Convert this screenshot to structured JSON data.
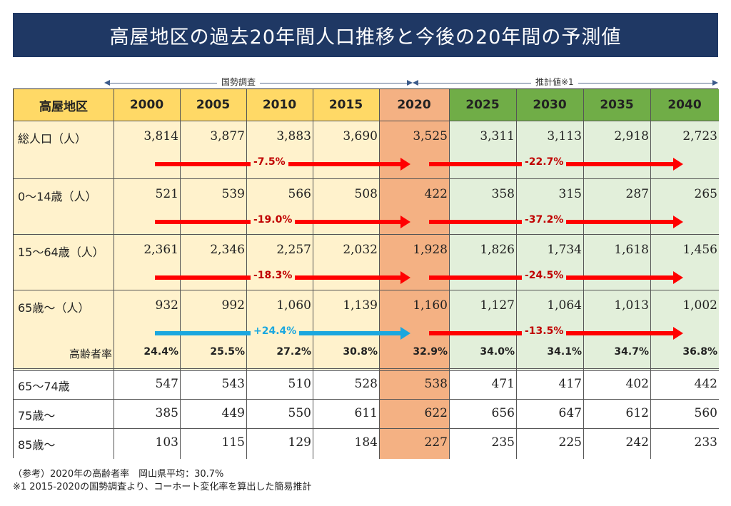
{
  "title": "高屋地区の過去20年間人口推移と今後の20年間の予測値",
  "census_label": "国勢調査",
  "estimate_label": "推計値※1",
  "header": {
    "label": "高屋地区",
    "years": [
      "2000",
      "2005",
      "2010",
      "2015",
      "2020",
      "2025",
      "2030",
      "2035",
      "2040"
    ]
  },
  "rows": [
    {
      "label": "総人口（人）",
      "values": [
        "3,814",
        "3,877",
        "3,883",
        "3,690",
        "3,525",
        "3,311",
        "3,113",
        "2,918",
        "2,723"
      ],
      "past_change": "-7.5%",
      "future_change": "-22.7%"
    },
    {
      "label": "0～14歳（人）",
      "values": [
        "521",
        "539",
        "566",
        "508",
        "422",
        "358",
        "315",
        "287",
        "265"
      ],
      "past_change": "-19.0%",
      "future_change": "-37.2%"
    },
    {
      "label": "15～64歳（人）",
      "values": [
        "2,361",
        "2,346",
        "2,257",
        "2,032",
        "1,928",
        "1,826",
        "1,734",
        "1,618",
        "1,456"
      ],
      "past_change": "-18.3%",
      "future_change": "-24.5%"
    },
    {
      "label": "65歳～（人）",
      "values": [
        "932",
        "992",
        "1,060",
        "1,139",
        "1,160",
        "1,127",
        "1,064",
        "1,013",
        "1,002"
      ],
      "past_change": "+24.4%",
      "future_change": "-13.5%"
    }
  ],
  "aging_rate": {
    "label": "高齢者率",
    "values": [
      "24.4%",
      "25.5%",
      "27.2%",
      "30.8%",
      "32.9%",
      "34.0%",
      "34.1%",
      "34.7%",
      "36.8%"
    ]
  },
  "sub_rows": [
    {
      "label": "65～74歳",
      "values": [
        "547",
        "543",
        "510",
        "528",
        "538",
        "471",
        "417",
        "402",
        "442"
      ]
    },
    {
      "label": "75歳～",
      "values": [
        "385",
        "449",
        "550",
        "611",
        "622",
        "656",
        "647",
        "612",
        "560"
      ]
    },
    {
      "label": "85歳～",
      "values": [
        "103",
        "115",
        "129",
        "184",
        "227",
        "235",
        "225",
        "242",
        "233"
      ]
    }
  ],
  "notes": [
    "（参考）2020年の高齢者率　岡山県平均：30.7%",
    "※1  2015-2020の国勢調査より、コーホート変化率を算出した簡易推計"
  ],
  "colors": {
    "title_bg": "#1f3864",
    "header_past": "#ffd966",
    "header_current": "#f4b183",
    "header_future": "#70ad47",
    "body_past": "#fff2cc",
    "body_current": "#f4b183",
    "body_future": "#e2efda",
    "arrow_decrease": "#ff0000",
    "arrow_increase": "#1aa7df",
    "pct_decrease": "#c00000",
    "pct_increase": "#1aa7df"
  }
}
